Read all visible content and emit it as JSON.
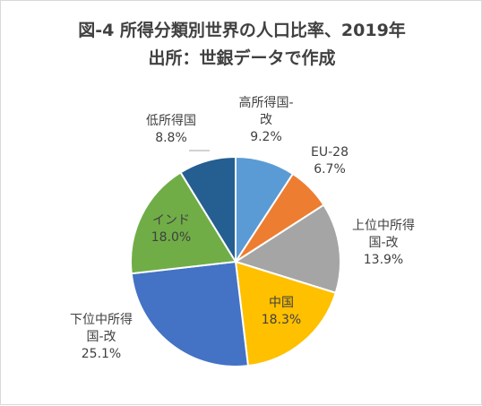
{
  "chart_data": {
    "type": "pie",
    "title": "図-4 所得分類別世界の人口比率、2019年",
    "subtitle": "出所：世銀データで作成",
    "start_angle_deg": 0,
    "direction": "clockwise",
    "slices": [
      {
        "label_lines": [
          "高所得国-",
          "改"
        ],
        "value_text": "9.2%",
        "value": 9.2,
        "color": "#5b9bd5"
      },
      {
        "label_lines": [
          "EU-28"
        ],
        "value_text": "6.7%",
        "value": 6.7,
        "color": "#ed7d31"
      },
      {
        "label_lines": [
          "上位中所得",
          "国-改"
        ],
        "value_text": "13.9%",
        "value": 13.9,
        "color": "#a5a5a5"
      },
      {
        "label_lines": [
          "中国"
        ],
        "value_text": "18.3%",
        "value": 18.3,
        "color": "#ffc000"
      },
      {
        "label_lines": [
          "下位中所得",
          "国-改"
        ],
        "value_text": "25.1%",
        "value": 25.1,
        "color": "#4472c4"
      },
      {
        "label_lines": [
          "インド"
        ],
        "value_text": "18.0%",
        "value": 18.0,
        "color": "#70ad47"
      },
      {
        "label_lines": [
          "低所得国"
        ],
        "value_text": "8.8%",
        "value": 8.8,
        "color": "#255e91"
      }
    ]
  }
}
